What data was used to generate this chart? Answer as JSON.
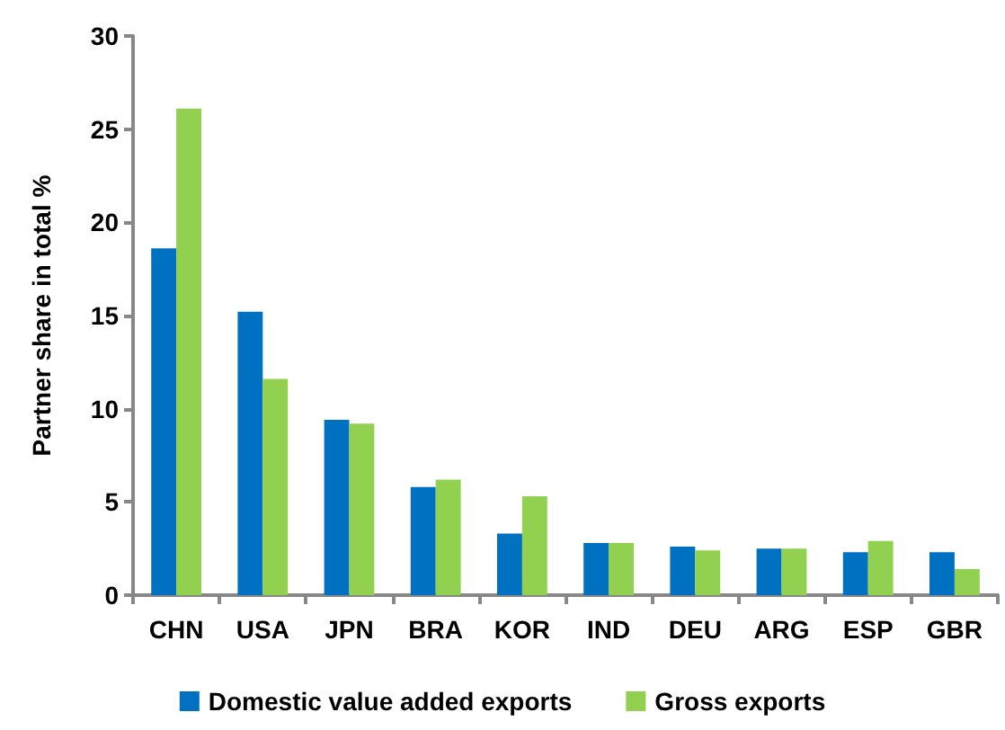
{
  "chart_data": {
    "type": "bar",
    "ylabel": "Partner share in total %",
    "categories": [
      "CHN",
      "USA",
      "JPN",
      "BRA",
      "KOR",
      "IND",
      "DEU",
      "ARG",
      "ESP",
      "GBR"
    ],
    "series": [
      {
        "name": "Domestic value added exports",
        "color": "#0070c0",
        "values": [
          18.6,
          15.2,
          9.4,
          5.8,
          3.3,
          2.8,
          2.6,
          2.5,
          2.3,
          2.3
        ]
      },
      {
        "name": "Gross exports",
        "color": "#92d050",
        "values": [
          26.1,
          11.6,
          9.2,
          6.2,
          5.3,
          2.8,
          2.4,
          2.5,
          2.9,
          1.4
        ]
      }
    ],
    "ylim": [
      0,
      30
    ],
    "yticks": [
      0,
      5,
      10,
      15,
      20,
      25,
      30
    ],
    "grid": false,
    "legend": "bottom"
  }
}
